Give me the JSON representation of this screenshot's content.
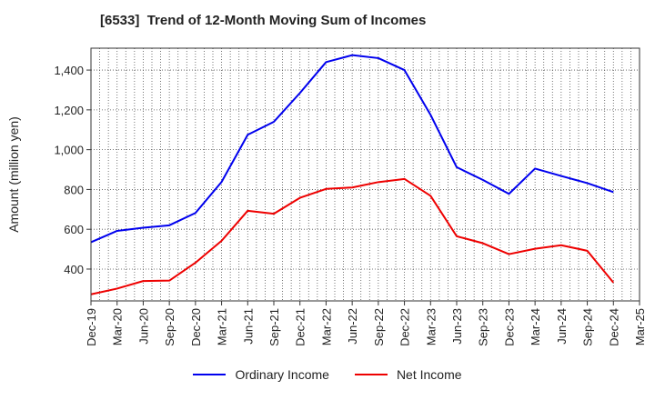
{
  "chart_data": {
    "type": "line",
    "title": "[6533]  Trend of 12-Month Moving Sum of Incomes",
    "xlabel": "",
    "ylabel": "Amount (million yen)",
    "ylim": [
      240,
      1510
    ],
    "yticks": [
      400,
      600,
      800,
      1000,
      1200,
      1400
    ],
    "ytick_labels": [
      "400",
      "600",
      "800",
      "1,000",
      "1,200",
      "1,400"
    ],
    "grid": true,
    "legend_position": "bottom",
    "categories": [
      "Dec-19",
      "Mar-20",
      "Jun-20",
      "Sep-20",
      "Dec-20",
      "Mar-21",
      "Jun-21",
      "Sep-21",
      "Dec-21",
      "Mar-22",
      "Jun-22",
      "Sep-22",
      "Dec-22",
      "Mar-23",
      "Jun-23",
      "Sep-23",
      "Dec-23",
      "Mar-24",
      "Jun-24",
      "Sep-24",
      "Dec-24",
      "Mar-25"
    ],
    "series": [
      {
        "name": "Ordinary Income",
        "color": "#0000ee",
        "values": [
          535,
          592,
          608,
          620,
          682,
          838,
          1075,
          1140,
          1285,
          1440,
          1475,
          1460,
          1400,
          1175,
          912,
          848,
          778,
          905,
          868,
          832,
          787,
          null
        ]
      },
      {
        "name": "Net Income",
        "color": "#ee0000",
        "values": [
          273,
          302,
          340,
          342,
          432,
          542,
          693,
          678,
          758,
          803,
          810,
          837,
          853,
          768,
          565,
          530,
          475,
          502,
          520,
          492,
          332,
          null
        ]
      }
    ]
  }
}
